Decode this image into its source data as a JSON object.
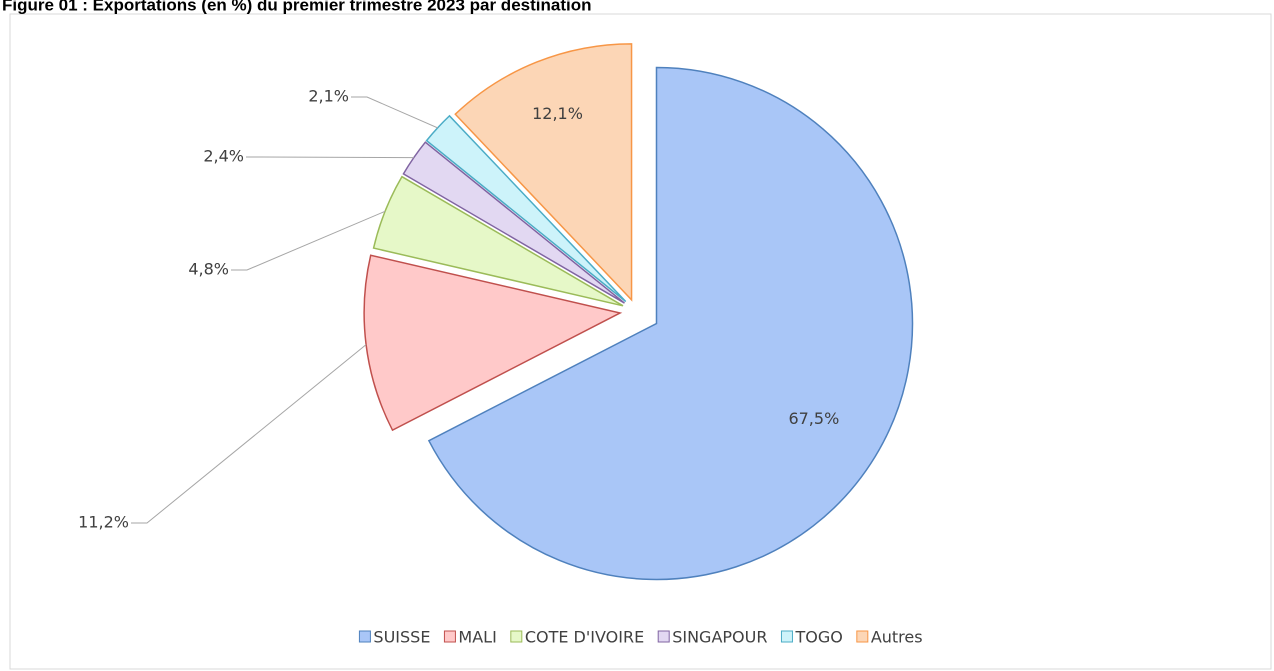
{
  "chart_data": {
    "type": "pie",
    "title": "Figure 01 : Exportations (en %) du premier trimestre 2023 par destination",
    "categories": [
      "SUISSE",
      "MALI",
      "COTE D'IVOIRE",
      "SINGAPOUR",
      "TOGO",
      "Autres"
    ],
    "values": [
      67.5,
      11.2,
      4.8,
      2.4,
      2.1,
      12.1
    ],
    "value_labels": [
      "67,5%",
      "11,2%",
      "4,8%",
      "2,4%",
      "2,1%",
      "12,1%"
    ],
    "colors": [
      "#a9c6f7",
      "#ffc9c9",
      "#e6f8c8",
      "#e2d8f2",
      "#cdf3fa",
      "#fcd6b6"
    ],
    "edge_colors": [
      "#4f81bd",
      "#c0504d",
      "#9bbb59",
      "#8064a2",
      "#4bacc6",
      "#f79646"
    ],
    "legend": "bottom"
  }
}
